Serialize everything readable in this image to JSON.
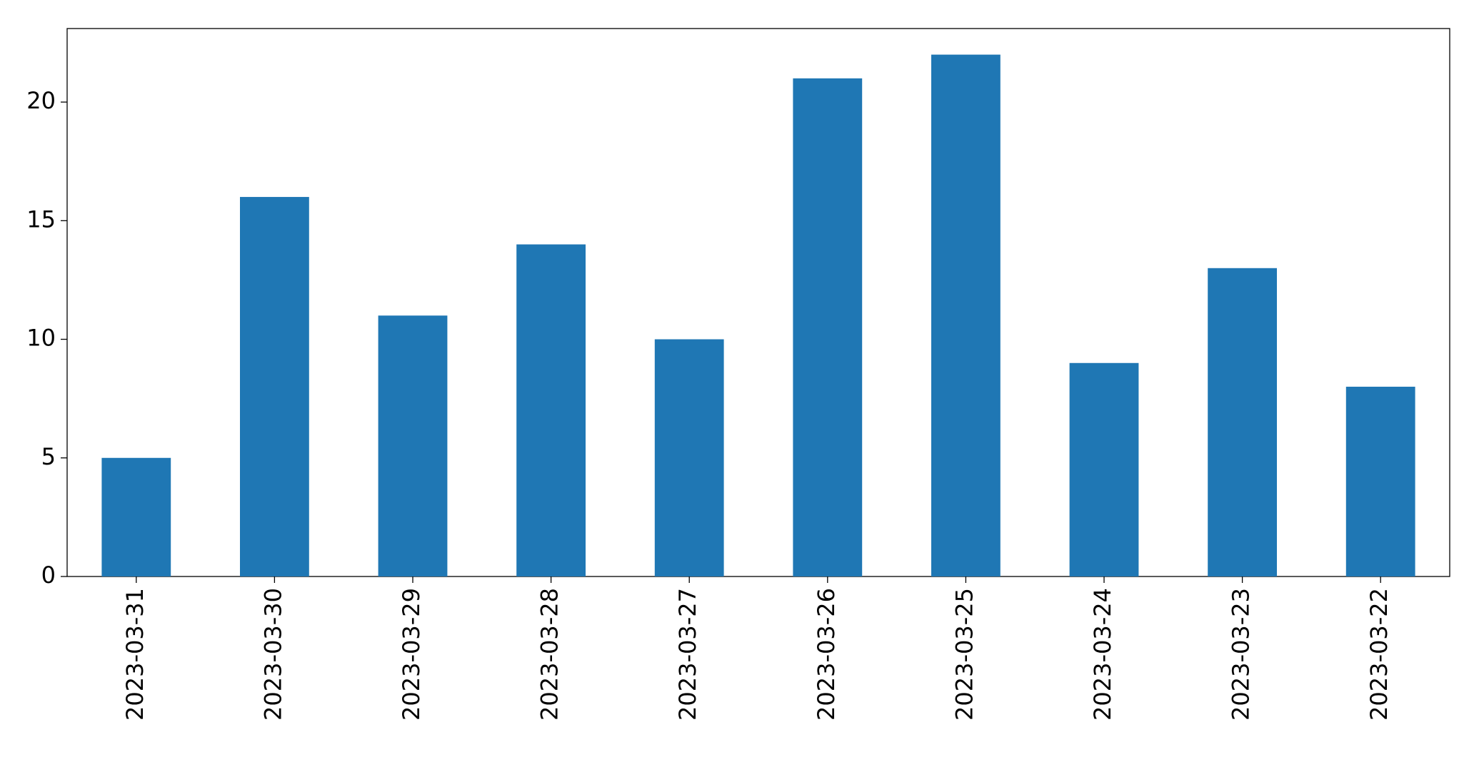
{
  "chart_data": {
    "type": "bar",
    "categories": [
      "2023-03-31",
      "2023-03-30",
      "2023-03-29",
      "2023-03-28",
      "2023-03-27",
      "2023-03-26",
      "2023-03-25",
      "2023-03-24",
      "2023-03-23",
      "2023-03-22"
    ],
    "values": [
      5,
      16,
      11,
      14,
      10,
      21,
      22,
      9,
      13,
      8
    ],
    "color": "#1f77b4",
    "ylim": [
      0,
      23.1
    ],
    "yticks": [
      0,
      5,
      10,
      15,
      20
    ],
    "grid": false
  }
}
